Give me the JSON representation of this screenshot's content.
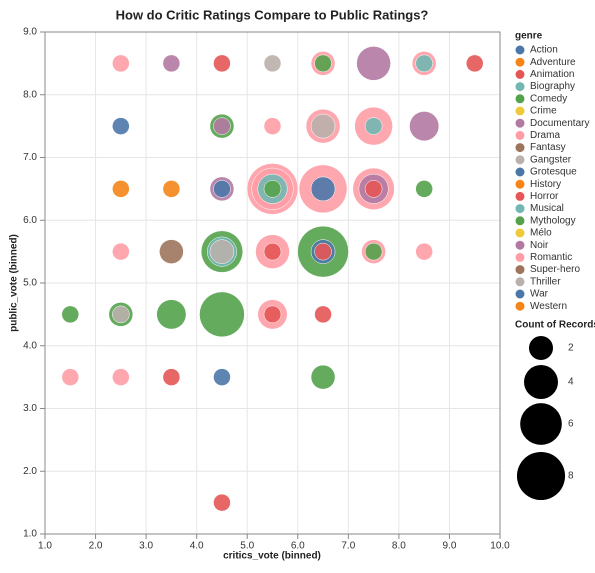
{
  "chart_data": {
    "type": "bubble",
    "title": "How do Critic Ratings Compare to Public Ratings?",
    "x_label": "critics_vote (binned)",
    "y_label": "public_vote (binned)",
    "xlim": [
      1,
      10
    ],
    "ylim": [
      1,
      9
    ],
    "xticks": [
      {
        "value": 1,
        "label": "1.0"
      },
      {
        "value": 2,
        "label": "2.0"
      },
      {
        "value": 3,
        "label": "3.0"
      },
      {
        "value": 4,
        "label": "4.0"
      },
      {
        "value": 5,
        "label": "5.0"
      },
      {
        "value": 6,
        "label": "6.0"
      },
      {
        "value": 7,
        "label": "7.0"
      },
      {
        "value": 8,
        "label": "8.0"
      },
      {
        "value": 9,
        "label": "9.0"
      },
      {
        "value": 10,
        "label": "10.0"
      }
    ],
    "yticks": [
      {
        "value": 1,
        "label": "1.0"
      },
      {
        "value": 2,
        "label": "2.0"
      },
      {
        "value": 3,
        "label": "3.0"
      },
      {
        "value": 4,
        "label": "4.0"
      },
      {
        "value": 5,
        "label": "5.0"
      },
      {
        "value": 6,
        "label": "6.0"
      },
      {
        "value": 7,
        "label": "7.0"
      },
      {
        "value": 8,
        "label": "8.0"
      },
      {
        "value": 9,
        "label": "9.0"
      }
    ],
    "grid": true,
    "legend_title": "genre",
    "size_legend_title": "Count of Records",
    "size_legend": [
      2,
      4,
      6,
      8
    ],
    "series": [
      {
        "name": "Action",
        "color": "#4c78a8",
        "x": [
          2.5,
          4.5
        ],
        "y": [
          7.5,
          3.5
        ],
        "size": [
          1,
          1
        ]
      },
      {
        "name": "Adventure",
        "color": "#f58518",
        "x": [
          2.5
        ],
        "y": [
          6.5
        ],
        "size": [
          1
        ]
      },
      {
        "name": "Animation",
        "color": "#e45756",
        "x": [
          4.5,
          9.5,
          3.5
        ],
        "y": [
          8.5,
          8.5,
          3.5
        ],
        "size": [
          1,
          1,
          1
        ]
      },
      {
        "name": "Biography",
        "color": "#72b7b2",
        "x": [
          5.5,
          4.5
        ],
        "y": [
          6.5,
          5.5
        ],
        "size": [
          3,
          3
        ]
      },
      {
        "name": "Comedy",
        "color": "#54a24b",
        "x": [
          6.5,
          4.5,
          5.5,
          8.5,
          4.5,
          6.5,
          7.5,
          1.5,
          2.5,
          3.5,
          4.5,
          6.5
        ],
        "y": [
          8.5,
          7.5,
          6.5,
          6.5,
          5.5,
          5.5,
          5.5,
          4.5,
          4.5,
          4.5,
          4.5,
          3.5
        ],
        "size": [
          1,
          2,
          1,
          1,
          6,
          9,
          1,
          1,
          2,
          3,
          7,
          2
        ]
      },
      {
        "name": "Crime",
        "color": "#eeca3b",
        "x": [],
        "y": [],
        "size": []
      },
      {
        "name": "Documentary",
        "color": "#b279a2",
        "x": [
          3.5,
          7.5,
          8.5
        ],
        "y": [
          8.5,
          8.5,
          7.5
        ],
        "size": [
          1,
          4,
          3
        ]
      },
      {
        "name": "Drama",
        "color": "#ff9da6",
        "x": [
          6.5,
          6.5,
          7.5,
          5.5,
          6.5,
          7.5,
          5.5,
          5.5,
          2.5
        ],
        "y": [
          8.5,
          7.5,
          7.5,
          6.5,
          6.5,
          6.5,
          5.5,
          4.5,
          3.5
        ],
        "size": [
          2,
          4,
          5,
          9,
          8,
          6,
          4,
          3,
          1
        ]
      },
      {
        "name": "Fantasy",
        "color": "#9d755d",
        "x": [
          3.5
        ],
        "y": [
          5.5
        ],
        "size": [
          2
        ]
      },
      {
        "name": "Gangster",
        "color": "#bab0ac",
        "x": [
          5.5,
          4.5
        ],
        "y": [
          8.5,
          5.5
        ],
        "size": [
          1,
          2
        ]
      },
      {
        "name": "Grotesque",
        "color": "#4c78a8",
        "x": [
          4.5
        ],
        "y": [
          6.5
        ],
        "size": [
          1
        ]
      },
      {
        "name": "History",
        "color": "#f58518",
        "x": [
          3.5
        ],
        "y": [
          6.5
        ],
        "size": [
          1
        ]
      },
      {
        "name": "Horror",
        "color": "#e45756",
        "x": [
          7.5,
          5.5,
          6.5,
          5.5,
          6.5,
          4.5
        ],
        "y": [
          6.5,
          5.5,
          5.5,
          4.5,
          4.5,
          1.5
        ],
        "size": [
          1,
          1,
          1,
          1,
          1,
          1
        ]
      },
      {
        "name": "Musical",
        "color": "#72b7b2",
        "x": [
          8.5,
          7.5
        ],
        "y": [
          8.5,
          7.5
        ],
        "size": [
          1,
          1
        ]
      },
      {
        "name": "Mythology",
        "color": "#54a24b",
        "x": [],
        "y": [],
        "size": []
      },
      {
        "name": "Mélo",
        "color": "#eeca3b",
        "x": [],
        "y": [],
        "size": []
      },
      {
        "name": "Noir",
        "color": "#b279a2",
        "x": [
          4.5,
          4.5,
          7.5
        ],
        "y": [
          7.5,
          6.5,
          6.5
        ],
        "size": [
          1,
          2,
          3
        ]
      },
      {
        "name": "Romantic",
        "color": "#ff9da6",
        "x": [
          2.5,
          8.5,
          5.5,
          5.5,
          2.5,
          7.5,
          8.5,
          1.5
        ],
        "y": [
          8.5,
          8.5,
          7.5,
          6.5,
          5.5,
          5.5,
          5.5,
          3.5
        ],
        "size": [
          1,
          2,
          1,
          6,
          1,
          2,
          1,
          1
        ]
      },
      {
        "name": "Super-hero",
        "color": "#9d755d",
        "x": [],
        "y": [],
        "size": []
      },
      {
        "name": "Thriller",
        "color": "#bab0ac",
        "x": [
          6.5,
          2.5
        ],
        "y": [
          7.5,
          4.5
        ],
        "size": [
          2,
          1
        ]
      },
      {
        "name": "War",
        "color": "#4c78a8",
        "x": [
          6.5,
          6.5
        ],
        "y": [
          6.5,
          5.5
        ],
        "size": [
          2,
          2
        ]
      },
      {
        "name": "Western",
        "color": "#f58518",
        "x": [],
        "y": [],
        "size": []
      }
    ]
  }
}
